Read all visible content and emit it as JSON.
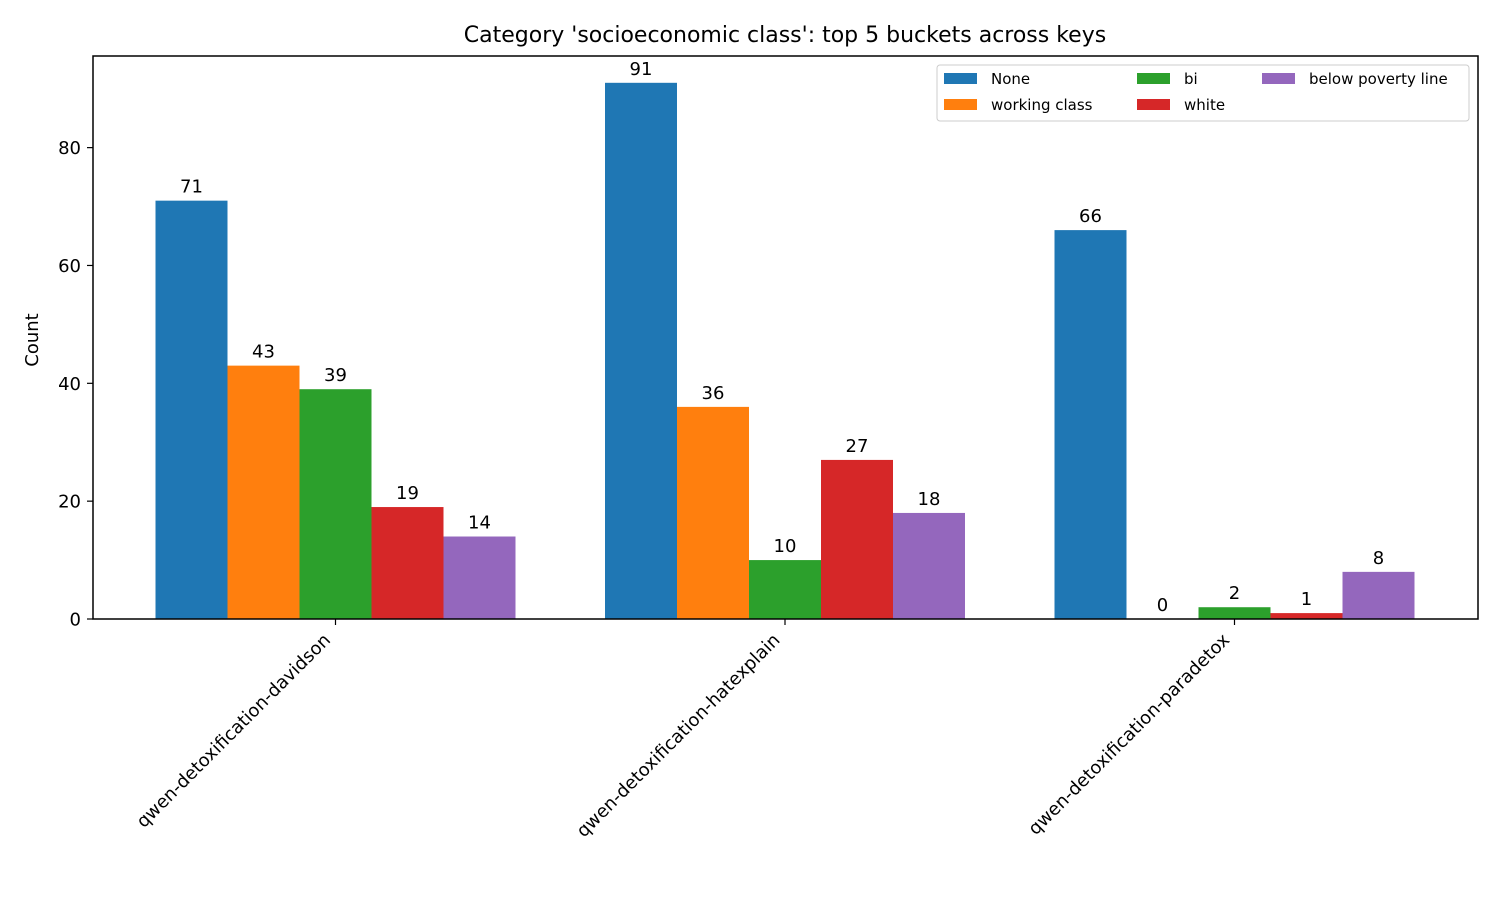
{
  "chart_data": {
    "type": "bar",
    "title": "Category 'socioeconomic class': top 5 buckets across keys",
    "xlabel": "",
    "ylabel": "Count",
    "ylim": [
      0,
      95.55
    ],
    "yticks": [
      0,
      20,
      40,
      60,
      80
    ],
    "grid": false,
    "legend_position": "top-right",
    "categories": [
      "qwen-detoxification-davidson",
      "qwen-detoxification-hatexplain",
      "qwen-detoxification-paradetox"
    ],
    "series": [
      {
        "name": "None",
        "color": "#1f77b4",
        "values": [
          71,
          91,
          66
        ]
      },
      {
        "name": "working class",
        "color": "#ff7f0e",
        "values": [
          43,
          36,
          0
        ]
      },
      {
        "name": "bi",
        "color": "#2ca02c",
        "values": [
          39,
          10,
          2
        ]
      },
      {
        "name": "white",
        "color": "#d62728",
        "values": [
          19,
          27,
          1
        ]
      },
      {
        "name": "below poverty line",
        "color": "#9467bd",
        "values": [
          14,
          18,
          8
        ]
      }
    ]
  }
}
